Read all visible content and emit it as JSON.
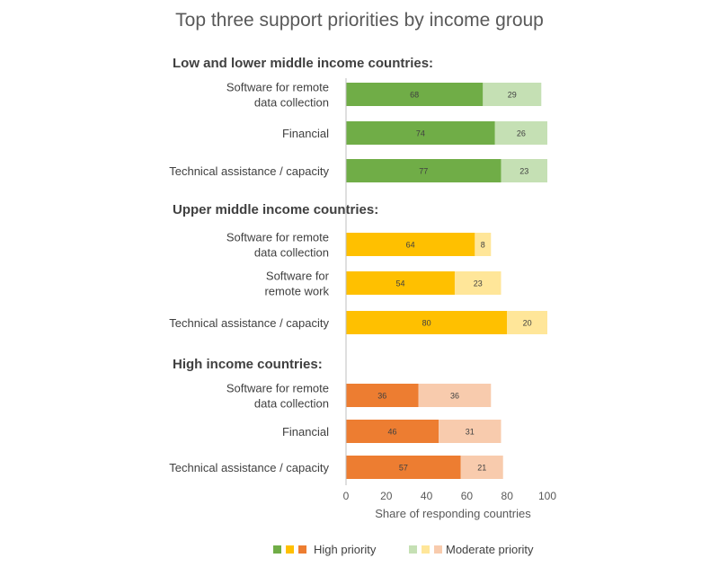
{
  "chart_data": {
    "type": "bar",
    "orientation": "horizontal",
    "stacked": true,
    "title": "Top three support priorities by income group",
    "xlabel": "Share of responding countries",
    "xlim": [
      0,
      100
    ],
    "xticks": [
      0,
      20,
      40,
      60,
      80,
      100
    ],
    "grid": false,
    "legend": {
      "position": "bottom",
      "entries": [
        {
          "name": "High priority",
          "colors": [
            "#70ad47",
            "#ffc000",
            "#ed7d31"
          ]
        },
        {
          "name": "Moderate priority",
          "colors": [
            "#c5e0b4",
            "#ffe699",
            "#f8cbad"
          ]
        }
      ]
    },
    "groups": [
      {
        "heading": "Low and lower middle income countries:",
        "colors": {
          "high": "#70ad47",
          "moderate": "#c5e0b4"
        },
        "items": [
          {
            "label": [
              "Software for remote",
              "data collection"
            ],
            "high": 68,
            "moderate": 29
          },
          {
            "label": [
              "Financial"
            ],
            "high": 74,
            "moderate": 26
          },
          {
            "label": [
              "Technical assistance / capacity"
            ],
            "high": 77,
            "moderate": 23
          }
        ]
      },
      {
        "heading": "Upper middle income countries:",
        "colors": {
          "high": "#ffc000",
          "moderate": "#ffe699"
        },
        "items": [
          {
            "label": [
              "Software for remote",
              "data collection"
            ],
            "high": 64,
            "moderate": 8
          },
          {
            "label": [
              "Software for",
              "remote work"
            ],
            "high": 54,
            "moderate": 23
          },
          {
            "label": [
              "Technical assistance / capacity"
            ],
            "high": 80,
            "moderate": 20
          }
        ]
      },
      {
        "heading": "High income countries:",
        "colors": {
          "high": "#ed7d31",
          "moderate": "#f8cbad"
        },
        "items": [
          {
            "label": [
              "Software for remote",
              "data collection"
            ],
            "high": 36,
            "moderate": 36
          },
          {
            "label": [
              "Financial"
            ],
            "high": 46,
            "moderate": 31
          },
          {
            "label": [
              "Technical assistance / capacity"
            ],
            "high": 57,
            "moderate": 21
          }
        ]
      }
    ]
  }
}
